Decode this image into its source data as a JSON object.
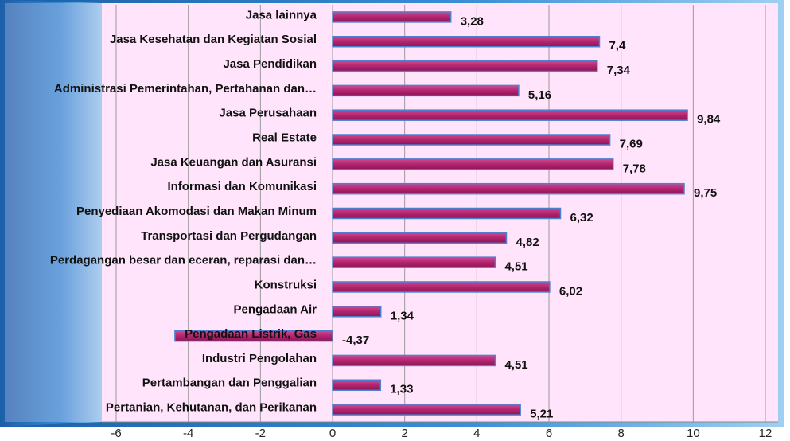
{
  "chart_data": {
    "type": "bar",
    "orientation": "horizontal",
    "categories": [
      "Jasa lainnya",
      "Jasa Kesehatan dan Kegiatan Sosial",
      "Jasa Pendidikan",
      "Administrasi Pemerintahan, Pertahanan dan…",
      "Jasa Perusahaan",
      "Real Estate",
      "Jasa Keuangan dan Asuransi",
      "Informasi dan Komunikasi",
      "Penyediaan Akomodasi dan Makan Minum",
      "Transportasi dan Pergudangan",
      "Perdagangan besar dan eceran, reparasi dan…",
      "Konstruksi",
      "Pengadaan Air",
      "Pengadaan Listrik, Gas",
      "Industri Pengolahan",
      "Pertambangan dan Penggalian",
      "Pertanian, Kehutanan, dan Perikanan"
    ],
    "values": [
      3.28,
      7.4,
      7.34,
      5.16,
      9.84,
      7.69,
      7.78,
      9.75,
      6.32,
      4.82,
      4.51,
      6.02,
      1.34,
      -4.37,
      4.51,
      1.33,
      5.21
    ],
    "value_labels": [
      "3,28",
      "7,4",
      "7,34",
      "5,16",
      "9,84",
      "7,69",
      "7,78",
      "9,75",
      "6,32",
      "4,82",
      "4,51",
      "6,02",
      "1,34",
      "-4,37",
      "4,51",
      "1,33",
      "5,21"
    ],
    "color": "#b3246f",
    "xlim": [
      -6,
      12
    ],
    "xticks": [
      -6,
      -4,
      -2,
      0,
      2,
      4,
      6,
      8,
      10,
      12
    ],
    "grid": true
  }
}
